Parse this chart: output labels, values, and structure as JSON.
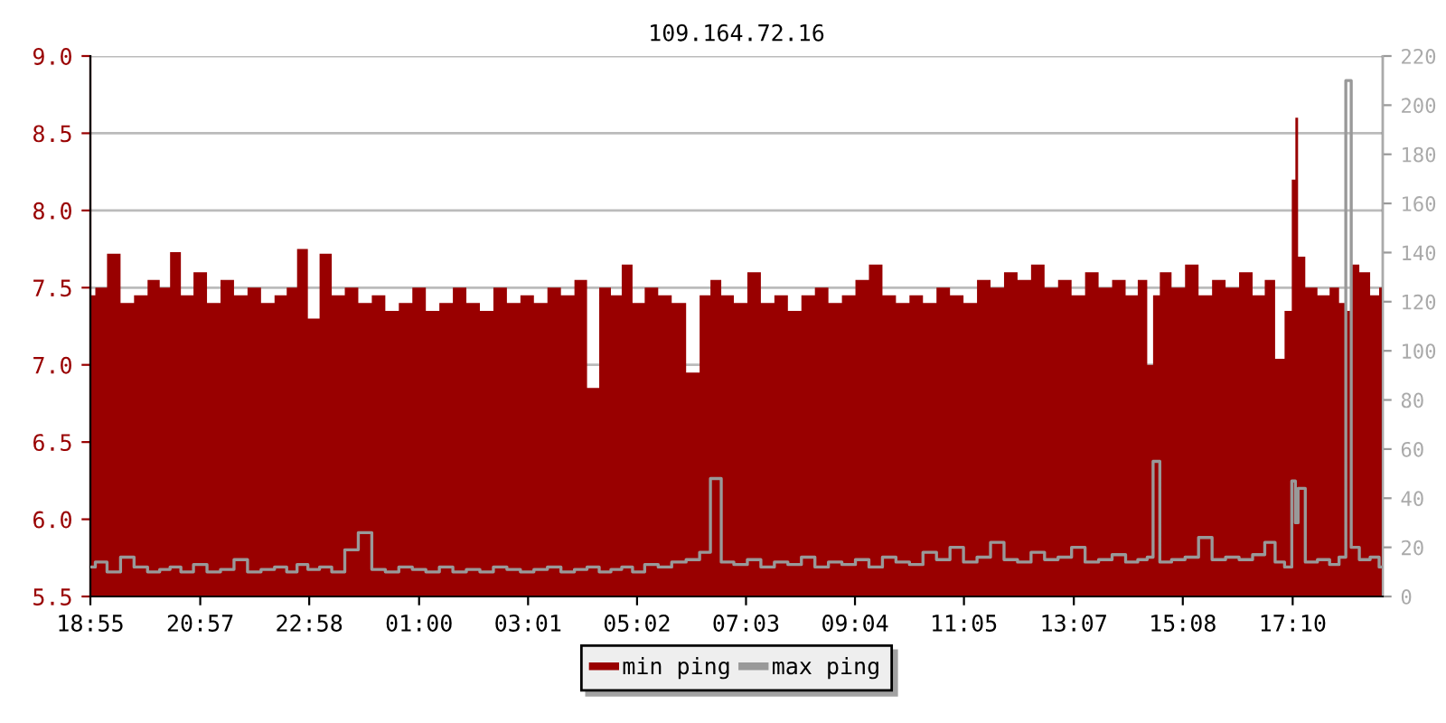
{
  "chart_data": {
    "type": "area",
    "title": "109.164.72.16",
    "x": [
      "2000-01-01T18:55",
      "2000-01-01T19:06",
      "2000-01-01T19:21",
      "2000-01-01T19:36",
      "2000-01-01T19:51",
      "2000-01-01T20:06",
      "2000-01-01T20:18",
      "2000-01-01T20:29",
      "2000-01-01T20:42",
      "2000-01-01T20:57",
      "2000-01-01T21:12",
      "2000-01-01T21:27",
      "2000-01-01T21:42",
      "2000-01-01T21:57",
      "2000-01-01T22:12",
      "2000-01-01T22:27",
      "2000-01-01T22:39",
      "2000-01-01T22:50",
      "2000-01-01T23:03",
      "2000-01-01T23:16",
      "2000-01-01T23:30",
      "2000-01-01T23:45",
      "2000-01-02T00:00",
      "2000-01-02T00:15",
      "2000-01-02T00:30",
      "2000-01-02T00:45",
      "2000-01-02T01:00",
      "2000-01-02T01:15",
      "2000-01-02T01:30",
      "2000-01-02T01:45",
      "2000-01-02T02:00",
      "2000-01-02T02:15",
      "2000-01-02T02:30",
      "2000-01-02T02:45",
      "2000-01-02T03:00",
      "2000-01-02T03:15",
      "2000-01-02T03:30",
      "2000-01-02T03:45",
      "2000-01-02T04:00",
      "2000-01-02T04:13",
      "2000-01-02T04:27",
      "2000-01-02T04:39",
      "2000-01-02T04:51",
      "2000-01-02T05:03",
      "2000-01-02T05:18",
      "2000-01-02T05:33",
      "2000-01-02T05:48",
      "2000-01-02T06:05",
      "2000-01-02T06:18",
      "2000-01-02T06:29",
      "2000-01-02T06:42",
      "2000-01-02T06:57",
      "2000-01-02T07:12",
      "2000-01-02T07:27",
      "2000-01-02T07:42",
      "2000-01-02T07:57",
      "2000-01-02T08:12",
      "2000-01-02T08:27",
      "2000-01-02T08:42",
      "2000-01-02T08:57",
      "2000-01-02T09:12",
      "2000-01-02T09:27",
      "2000-01-02T09:42",
      "2000-01-02T09:57",
      "2000-01-02T10:12",
      "2000-01-02T10:27",
      "2000-01-02T10:42",
      "2000-01-02T10:57",
      "2000-01-02T11:12",
      "2000-01-02T11:27",
      "2000-01-02T11:42",
      "2000-01-02T11:57",
      "2000-01-02T12:12",
      "2000-01-02T12:27",
      "2000-01-02T12:42",
      "2000-01-02T12:57",
      "2000-01-02T13:12",
      "2000-01-02T13:27",
      "2000-01-02T13:42",
      "2000-01-02T13:57",
      "2000-01-02T14:12",
      "2000-01-02T14:24",
      "2000-01-02T14:33",
      "2000-01-02T14:37",
      "2000-01-02T14:48",
      "2000-01-02T15:03",
      "2000-01-02T15:18",
      "2000-01-02T15:33",
      "2000-01-02T15:48",
      "2000-01-02T16:03",
      "2000-01-02T16:18",
      "2000-01-02T16:33",
      "2000-01-02T16:45",
      "2000-01-02T16:56",
      "2000-01-02T17:06",
      "2000-01-02T17:12",
      "2000-01-02T17:14",
      "2000-01-02T17:18",
      "2000-01-02T17:30",
      "2000-01-02T17:45",
      "2000-01-02T17:57",
      "2000-01-02T18:06",
      "2000-01-02T18:12",
      "2000-01-02T18:18",
      "2000-01-02T18:30",
      "2000-01-02T18:42",
      "2000-01-02T18:50"
    ],
    "series": [
      {
        "name": "min ping",
        "color": "#990000",
        "values": [
          7.45,
          7.5,
          7.72,
          7.4,
          7.45,
          7.55,
          7.5,
          7.73,
          7.45,
          7.6,
          7.4,
          7.55,
          7.45,
          7.5,
          7.4,
          7.45,
          7.5,
          7.75,
          7.3,
          7.72,
          7.45,
          7.5,
          7.4,
          7.45,
          7.35,
          7.4,
          7.5,
          7.35,
          7.4,
          7.5,
          7.4,
          7.35,
          7.5,
          7.4,
          7.45,
          7.4,
          7.5,
          7.45,
          7.55,
          6.85,
          7.5,
          7.45,
          7.65,
          7.4,
          7.5,
          7.45,
          7.4,
          6.95,
          7.45,
          7.55,
          7.45,
          7.4,
          7.6,
          7.4,
          7.45,
          7.35,
          7.45,
          7.5,
          7.4,
          7.45,
          7.55,
          7.65,
          7.45,
          7.4,
          7.45,
          7.4,
          7.5,
          7.45,
          7.4,
          7.55,
          7.5,
          7.6,
          7.55,
          7.65,
          7.5,
          7.55,
          7.45,
          7.6,
          7.5,
          7.55,
          7.45,
          7.55,
          7.0,
          7.45,
          7.6,
          7.5,
          7.65,
          7.45,
          7.55,
          7.5,
          7.6,
          7.45,
          7.55,
          7.04,
          7.35,
          8.2,
          8.6,
          7.7,
          7.5,
          7.45,
          7.5,
          7.4,
          7.35,
          7.65,
          7.6,
          7.45,
          7.5
        ]
      },
      {
        "name": "max ping",
        "type": "line",
        "axis": "y2",
        "color": "#999999",
        "values": [
          12,
          14,
          10,
          16,
          12,
          10,
          11,
          12,
          10,
          13,
          10,
          11,
          15,
          10,
          11,
          12,
          10,
          13,
          11,
          12,
          10,
          19,
          26,
          11,
          10,
          12,
          11,
          10,
          12,
          10,
          11,
          10,
          12,
          11,
          10,
          11,
          12,
          10,
          11,
          12,
          10,
          11,
          12,
          10,
          13,
          12,
          14,
          15,
          18,
          48,
          14,
          13,
          15,
          12,
          14,
          13,
          16,
          12,
          14,
          13,
          15,
          12,
          16,
          14,
          13,
          18,
          15,
          20,
          14,
          16,
          22,
          15,
          14,
          18,
          15,
          16,
          20,
          14,
          15,
          17,
          14,
          15,
          16,
          55,
          14,
          15,
          16,
          24,
          15,
          16,
          15,
          17,
          22,
          14,
          12,
          47,
          30,
          44,
          14,
          15,
          13,
          16,
          210,
          20,
          15,
          16,
          12
        ]
      }
    ],
    "xlim": [
      "2000-01-01T18:55",
      "2000-01-02T18:50"
    ],
    "xticks": [
      {
        "value": "2000-01-01T18:55",
        "label": "18:55"
      },
      {
        "value": "2000-01-01T20:57",
        "label": "20:57"
      },
      {
        "value": "2000-01-01T22:58",
        "label": "22:58"
      },
      {
        "value": "2000-01-02T01:00",
        "label": "01:00"
      },
      {
        "value": "2000-01-02T03:01",
        "label": "03:01"
      },
      {
        "value": "2000-01-02T05:02",
        "label": "05:02"
      },
      {
        "value": "2000-01-02T07:03",
        "label": "07:03"
      },
      {
        "value": "2000-01-02T09:04",
        "label": "09:04"
      },
      {
        "value": "2000-01-02T11:05",
        "label": "11:05"
      },
      {
        "value": "2000-01-02T13:07",
        "label": "13:07"
      },
      {
        "value": "2000-01-02T15:08",
        "label": "15:08"
      },
      {
        "value": "2000-01-02T17:10",
        "label": "17:10"
      }
    ],
    "ylim": [
      5.5,
      9.0
    ],
    "yticks": [
      {
        "value": 5.5,
        "label": "5.5"
      },
      {
        "value": 6.0,
        "label": "6.0"
      },
      {
        "value": 6.5,
        "label": "6.5"
      },
      {
        "value": 7.0,
        "label": "7.0"
      },
      {
        "value": 7.5,
        "label": "7.5"
      },
      {
        "value": 8.0,
        "label": "8.0"
      },
      {
        "value": 8.5,
        "label": "8.5"
      },
      {
        "value": 9.0,
        "label": "9.0"
      }
    ],
    "y2lim": [
      0,
      220
    ],
    "y2ticks": [
      0,
      20,
      40,
      60,
      80,
      100,
      120,
      140,
      160,
      180,
      200,
      220
    ],
    "grid": "y",
    "legend": "bottom"
  }
}
